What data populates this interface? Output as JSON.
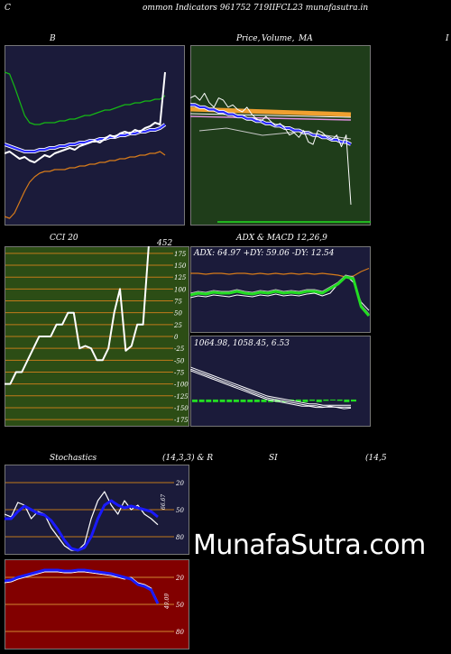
{
  "header": {
    "left_letter": "C",
    "title": "ommon  Indicators 961752  719IIFCL23 munafasutra.in"
  },
  "panels": {
    "bollinger": {
      "title": "B"
    },
    "price_ma": {
      "title_1": "Price,",
      "title_2": "Volume,",
      "title_3": "MA",
      "right_letter": "I"
    },
    "cci": {
      "title": "CCI 20",
      "value_label": "452",
      "ticks": [
        "175",
        "150",
        "125",
        "100",
        "75",
        "50",
        "25",
        "0",
        "-25",
        "-50",
        "-75",
        "-100",
        "-125",
        "-150",
        "-175"
      ]
    },
    "adx": {
      "title": "ADX  & MACD 12,26,9",
      "readout": "ADX: 64.97  +DY: 59.06  -DY: 12.54"
    },
    "macd": {
      "readout": "1064.98,  1058.45,  6.53"
    },
    "stochastics": {
      "title_1": "Stochastics",
      "title_2": "(14,3,3) & R",
      "title_3": "SI",
      "title_4": "(14,5",
      "ticks": [
        "80",
        "50",
        "20"
      ],
      "value_label": "66.67"
    },
    "rsi": {
      "ticks": [
        "80",
        "50",
        "20"
      ],
      "value_label": "49.09"
    }
  },
  "watermark": "MunafaSutra.com",
  "colors": {
    "navy": "#1b1b3a",
    "green_panel": "#1f3d1a",
    "olive_panel": "#2c4d15",
    "red_panel": "#820000"
  },
  "chart_data": [
    {
      "type": "line",
      "title": "B",
      "series": [
        {
          "values": [
            1035,
            1036,
            1034,
            1032,
            1033,
            1031,
            1030,
            1032,
            1034,
            1033,
            1035,
            1036,
            1037,
            1038,
            1037,
            1039,
            1040,
            1041,
            1042,
            1041,
            1043,
            1045,
            1044,
            1046,
            1047,
            1046,
            1048,
            1047,
            1049,
            1050,
            1052,
            1051,
            1080
          ]
        },
        {
          "values": [
            1080,
            1079,
            1072,
            1064,
            1056,
            1052,
            1051,
            1051,
            1052,
            1052,
            1052,
            1053,
            1053,
            1054,
            1054,
            1055,
            1056,
            1056,
            1057,
            1058,
            1059,
            1059,
            1060,
            1061,
            1062,
            1062,
            1063,
            1063,
            1064,
            1064,
            1065,
            1065,
            1067
          ]
        },
        {
          "values": [
            1040,
            1039,
            1038,
            1037,
            1036,
            1036,
            1036,
            1037,
            1037,
            1038,
            1038,
            1039,
            1039,
            1040,
            1040,
            1041,
            1041,
            1042,
            1042,
            1043,
            1043,
            1044,
            1044,
            1045,
            1045,
            1046,
            1046,
            1047,
            1047,
            1048,
            1048,
            1049,
            1051
          ]
        },
        {
          "values": [
            1000,
            999,
            1002,
            1008,
            1014,
            1019,
            1022,
            1024,
            1025,
            1025,
            1026,
            1026,
            1026,
            1027,
            1027,
            1028,
            1028,
            1029,
            1029,
            1030,
            1030,
            1031,
            1031,
            1032,
            1032,
            1033,
            1033,
            1034,
            1034,
            1035,
            1035,
            1036,
            1034
          ]
        }
      ]
    },
    {
      "type": "line",
      "title": "Price, Volume, MA",
      "series": [
        {
          "values": [
            1035,
            1034,
            1036,
            1033,
            1037,
            1039,
            1035,
            1036,
            1039,
            1038,
            1040,
            1041,
            1039,
            1042,
            1044,
            1045,
            1043,
            1045,
            1047,
            1046,
            1048,
            1051,
            1050,
            1052,
            1049,
            1054,
            1055,
            1049,
            1050,
            1052,
            1053,
            1051,
            1056,
            1051,
            1081
          ]
        },
        {
          "values": [
            1060,
            1059,
            1059,
            1058,
            1058,
            1058,
            1057,
            1057,
            1057,
            1056,
            1056,
            1056,
            1055,
            1055,
            1055,
            1055,
            1054,
            1054,
            1054,
            1053,
            1053,
            1053,
            1053,
            1052,
            1052,
            1052,
            1052,
            1051,
            1051,
            1051,
            1051,
            1050,
            1050,
            1050,
            1051
          ]
        },
        {
          "values": [
            1038,
            1038,
            1039,
            1039,
            1040,
            1040,
            1041,
            1041,
            1042,
            1042,
            1043,
            1043,
            1044,
            1044,
            1045,
            1045,
            1046,
            1046,
            1047,
            1047,
            1048,
            1048,
            1049,
            1049,
            1050,
            1050,
            1051,
            1051,
            1052,
            1052,
            1053,
            1053,
            1054,
            1054,
            1055
          ]
        }
      ]
    },
    {
      "type": "line",
      "title": "CCI 20",
      "ylim": [
        -175,
        175
      ],
      "series": [
        {
          "values": [
            -100,
            -100,
            -75,
            -75,
            -50,
            -25,
            0,
            0,
            0,
            25,
            25,
            50,
            50,
            -25,
            -20,
            -25,
            -50,
            -50,
            -25,
            50,
            100,
            -30,
            -20,
            25,
            25,
            452
          ]
        }
      ]
    },
    {
      "type": "line",
      "title": "ADX & MACD 12,26,9",
      "series": [
        {
          "name": "ADX",
          "values": [
            42,
            40,
            41,
            39,
            40,
            40,
            38,
            40,
            41,
            39,
            40,
            38,
            40,
            39,
            40,
            38,
            38,
            40,
            35,
            30,
            22,
            24,
            55,
            64.97
          ]
        },
        {
          "name": "+DY",
          "values": [
            45,
            43,
            44,
            42,
            43,
            44,
            42,
            43,
            44,
            42,
            43,
            41,
            43,
            42,
            43,
            41,
            40,
            43,
            40,
            30,
            20,
            28,
            50,
            59.06
          ]
        },
        {
          "name": "-DY",
          "values": [
            18,
            18,
            19,
            18,
            18,
            19,
            18,
            18,
            19,
            18,
            19,
            18,
            19,
            18,
            19,
            18,
            19,
            18,
            19,
            20,
            22,
            21,
            16,
            12.54
          ]
        }
      ]
    },
    {
      "type": "line",
      "title": "MACD 12,26,9",
      "series": [
        {
          "name": "MACD",
          "values": [
            -22,
            -20,
            -18,
            -16,
            -14,
            -12,
            -10,
            -8,
            -6,
            -4,
            -2,
            0,
            1,
            2,
            3,
            4,
            5,
            5,
            6,
            6,
            5,
            6,
            7,
            6.53
          ]
        },
        {
          "name": "Signal",
          "values": [
            -24,
            -22,
            -20,
            -18,
            -16,
            -14,
            -12,
            -10,
            -8,
            -6,
            -4,
            -2,
            -1,
            0,
            1,
            2,
            3,
            4,
            4,
            5,
            5,
            5,
            5,
            5
          ]
        }
      ]
    },
    {
      "type": "line",
      "title": "Stochastics (14,3,3)",
      "ylim": [
        0,
        100
      ],
      "series": [
        {
          "values": [
            55,
            58,
            42,
            45,
            60,
            52,
            55,
            70,
            80,
            90,
            95,
            95,
            88,
            60,
            40,
            30,
            45,
            55,
            40,
            50,
            45,
            55,
            60,
            66.67
          ]
        },
        {
          "values": [
            60,
            60,
            52,
            46,
            50,
            54,
            56,
            62,
            72,
            84,
            93,
            95,
            92,
            80,
            60,
            45,
            40,
            45,
            48,
            46,
            48,
            50,
            52,
            58
          ]
        }
      ]
    },
    {
      "type": "line",
      "title": "RSI (14)",
      "ylim": [
        0,
        100
      ],
      "series": [
        {
          "values": [
            24,
            23,
            20,
            18,
            16,
            14,
            12,
            12,
            12,
            13,
            13,
            12,
            12,
            13,
            14,
            15,
            16,
            18,
            20,
            22,
            28,
            30,
            34,
            49.09
          ]
        }
      ]
    }
  ]
}
